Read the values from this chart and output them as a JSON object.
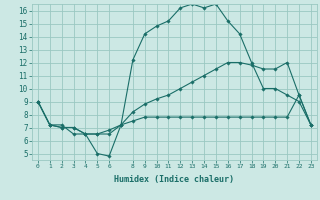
{
  "xlabel": "Humidex (Indice chaleur)",
  "bg_color": "#cce8e4",
  "grid_color": "#9ac8c2",
  "line_color": "#1a6e68",
  "xlim": [
    -0.5,
    23.5
  ],
  "ylim": [
    4.5,
    16.5
  ],
  "xticks": [
    0,
    1,
    2,
    3,
    4,
    5,
    6,
    8,
    9,
    10,
    11,
    12,
    13,
    14,
    15,
    16,
    17,
    18,
    19,
    20,
    21,
    22,
    23
  ],
  "xtick_labels": [
    "0",
    "1",
    "2",
    "3",
    "4",
    "5",
    "6",
    "8",
    "9",
    "10",
    "11",
    "12",
    "13",
    "14",
    "15",
    "16",
    "17",
    "18",
    "19",
    "20",
    "21",
    "22",
    "23"
  ],
  "yticks": [
    5,
    6,
    7,
    8,
    9,
    10,
    11,
    12,
    13,
    14,
    15,
    16
  ],
  "line1_x": [
    0,
    1,
    2,
    3,
    4,
    5,
    6,
    7,
    8,
    9,
    10,
    11,
    12,
    13,
    14,
    15,
    16,
    17,
    18,
    19,
    20,
    21,
    22,
    23
  ],
  "line1_y": [
    9.0,
    7.2,
    7.2,
    6.5,
    6.5,
    5.0,
    4.8,
    7.2,
    12.2,
    14.2,
    14.8,
    15.2,
    16.2,
    16.5,
    16.2,
    16.5,
    15.2,
    14.2,
    12.0,
    10.0,
    10.0,
    9.5,
    9.0,
    7.2
  ],
  "line2_x": [
    0,
    1,
    2,
    3,
    4,
    5,
    6,
    7,
    8,
    9,
    10,
    11,
    12,
    13,
    14,
    15,
    16,
    17,
    18,
    19,
    20,
    21,
    22,
    23
  ],
  "line2_y": [
    9.0,
    7.2,
    7.0,
    7.0,
    6.5,
    6.5,
    6.8,
    7.2,
    8.2,
    8.8,
    9.2,
    9.5,
    10.0,
    10.5,
    11.0,
    11.5,
    12.0,
    12.0,
    11.8,
    11.5,
    11.5,
    12.0,
    9.5,
    7.2
  ],
  "line3_x": [
    0,
    1,
    2,
    3,
    4,
    5,
    6,
    7,
    8,
    9,
    10,
    11,
    12,
    13,
    14,
    15,
    16,
    17,
    18,
    19,
    20,
    21,
    22,
    23
  ],
  "line3_y": [
    9.0,
    7.2,
    7.0,
    7.0,
    6.5,
    6.5,
    6.5,
    7.2,
    7.5,
    7.8,
    7.8,
    7.8,
    7.8,
    7.8,
    7.8,
    7.8,
    7.8,
    7.8,
    7.8,
    7.8,
    7.8,
    7.8,
    9.5,
    7.2
  ]
}
